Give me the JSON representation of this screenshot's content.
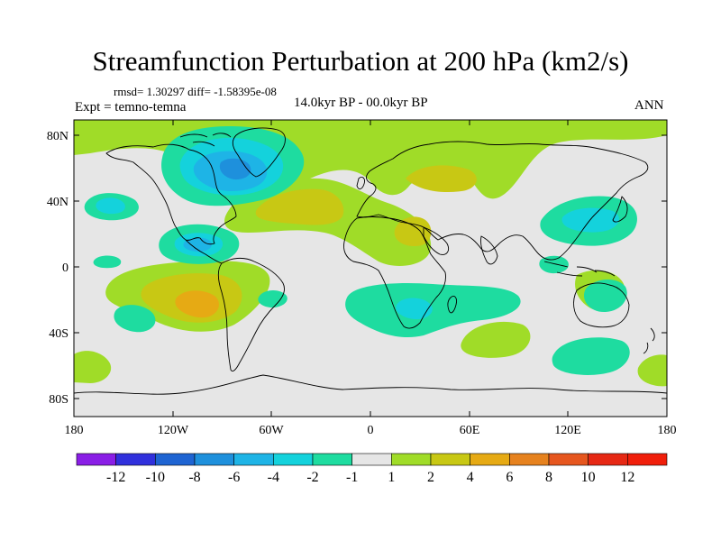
{
  "title": "Streamfunction Perturbation at 200 hPa (km2/s)",
  "stats_line": "rmsd= 1.30297 diff= -1.58395e-08",
  "experiment": "Expt = temno-temna",
  "period": "14.0kyr BP - 00.0kyr BP",
  "season": "ANN",
  "lat_labels": [
    "80N",
    "40N",
    "0",
    "40S",
    "80S"
  ],
  "lon_labels": [
    "180",
    "120W",
    "60W",
    "0",
    "60E",
    "120E",
    "180"
  ],
  "colorbar": {
    "labels": [
      "-12",
      "-10",
      "-8",
      "-6",
      "-4",
      "-2",
      "-1",
      "1",
      "2",
      "4",
      "6",
      "8",
      "10",
      "12"
    ],
    "colors": [
      "#8a1ee6",
      "#3030dc",
      "#1e64d2",
      "#1e90dc",
      "#1eb4e6",
      "#14d2dc",
      "#1edca0",
      "#e6e6e6",
      "#a0dc28",
      "#c8c814",
      "#e6aa14",
      "#e6821e",
      "#e6561e",
      "#e62814",
      "#f01e0a"
    ]
  },
  "colors": {
    "ocean_background": "#e6e6e6",
    "coastline": "#000000"
  }
}
